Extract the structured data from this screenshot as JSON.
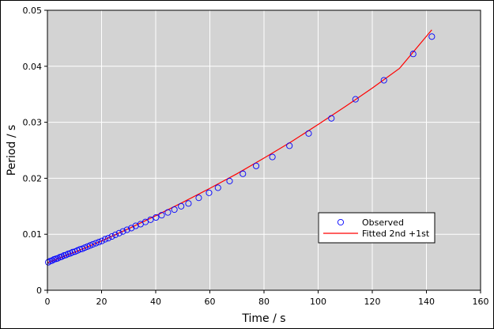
{
  "chart_data": {
    "type": "scatter",
    "xlabel": "Time / s",
    "ylabel": "Period / s",
    "xlim": [
      0,
      160
    ],
    "ylim": [
      0,
      0.05
    ],
    "xticks": [
      "0",
      "20",
      "40",
      "60",
      "80",
      "100",
      "120",
      "140",
      "160"
    ],
    "yticks": [
      "0",
      "0.01",
      "0.02",
      "0.03",
      "0.04",
      "0.05"
    ],
    "grid": true,
    "background_color": "#d3d3d3",
    "legend_position": "lower-right",
    "series": [
      {
        "name": "Observed",
        "style": "open-circle",
        "color": "#0000ff",
        "x": [
          0.3,
          1.0,
          1.7,
          2.4,
          3.1,
          3.8,
          4.6,
          5.3,
          6.1,
          6.9,
          7.7,
          8.5,
          9.3,
          10.2,
          11.1,
          12.0,
          12.9,
          13.8,
          14.8,
          15.8,
          16.8,
          17.9,
          19.0,
          20.1,
          21.3,
          22.5,
          23.8,
          25.1,
          26.5,
          27.9,
          29.4,
          31.0,
          32.6,
          34.4,
          36.2,
          38.1,
          40.1,
          42.2,
          44.5,
          46.9,
          49.4,
          52.1,
          55.9,
          59.7,
          63.0,
          67.3,
          72.2,
          77.1,
          83.1,
          89.4,
          96.5,
          104.9,
          113.8,
          124.3,
          135.1,
          142.0
        ],
        "y": [
          0.005,
          0.0052,
          0.0053,
          0.0055,
          0.0056,
          0.0057,
          0.0059,
          0.006,
          0.0062,
          0.0063,
          0.0065,
          0.0066,
          0.0068,
          0.0069,
          0.0071,
          0.0073,
          0.0074,
          0.0076,
          0.0078,
          0.008,
          0.0082,
          0.0084,
          0.0086,
          0.0088,
          0.0091,
          0.0093,
          0.0096,
          0.0099,
          0.0102,
          0.0105,
          0.0108,
          0.0111,
          0.0115,
          0.0118,
          0.0122,
          0.0126,
          0.013,
          0.0134,
          0.0139,
          0.0144,
          0.015,
          0.0155,
          0.0165,
          0.0174,
          0.0183,
          0.0195,
          0.0208,
          0.0222,
          0.0238,
          0.0258,
          0.028,
          0.0307,
          0.0341,
          0.0375,
          0.0422,
          0.0453
        ]
      },
      {
        "name": "Fitted 2nd +1st",
        "style": "line",
        "color": "#ff0000",
        "x": [
          0,
          10,
          20,
          30,
          40,
          50,
          60,
          70,
          80,
          90,
          100,
          110,
          120,
          130,
          142
        ],
        "y": [
          0.0049,
          0.0068,
          0.0088,
          0.011,
          0.0133,
          0.0157,
          0.0182,
          0.0208,
          0.0236,
          0.0265,
          0.0296,
          0.0328,
          0.0361,
          0.0396,
          0.0465
        ]
      }
    ]
  }
}
